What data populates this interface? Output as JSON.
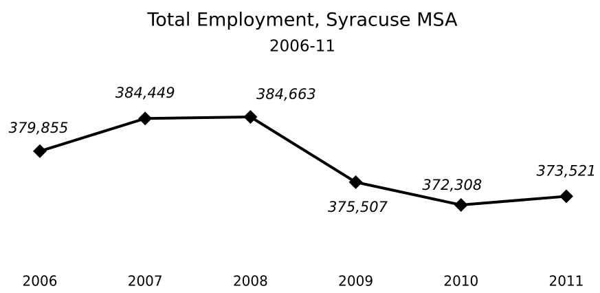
{
  "chart_data": {
    "type": "line",
    "title": "Total Employment, Syracuse MSA",
    "subtitle": "2006-11",
    "categories": [
      "2006",
      "2007",
      "2008",
      "2009",
      "2010",
      "2011"
    ],
    "series": [
      {
        "name": null,
        "color": "#000000",
        "values": [
          379855,
          384449,
          384663,
          375507,
          372308,
          373521
        ],
        "value_labels": [
          "379,855",
          "384,449",
          "384,663",
          "375,507",
          "372,308",
          "373,521"
        ]
      }
    ]
  }
}
